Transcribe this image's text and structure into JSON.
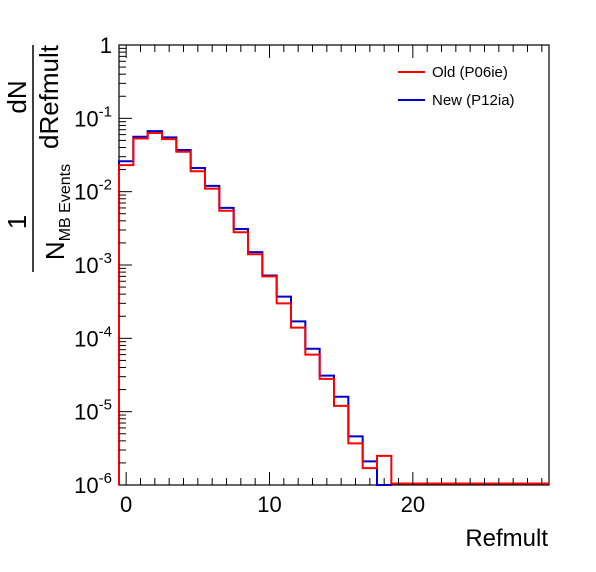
{
  "chart_data": {
    "type": "line",
    "xlabel": "Refmult",
    "ylabel": {
      "factor_numerator": "1",
      "factor_denominator_main": "N",
      "factor_denominator_sub": "MB Events",
      "deriv_numerator": "dN",
      "deriv_denominator": "dRefmult"
    },
    "x_ticks": [
      "0",
      "10",
      "20"
    ],
    "y_ticks": [
      {
        "base": "10",
        "exp": "-6"
      },
      {
        "base": "10",
        "exp": "-5"
      },
      {
        "base": "10",
        "exp": "-4"
      },
      {
        "base": "10",
        "exp": "-3"
      },
      {
        "base": "10",
        "exp": "-2"
      },
      {
        "base": "10",
        "exp": "-1"
      },
      {
        "base": "1",
        "exp": ""
      }
    ],
    "xlim": [
      -0.5,
      29.5
    ],
    "ylim": [
      1e-06,
      1
    ],
    "yscale": "log",
    "grid": false,
    "legend_position": "top-right",
    "bins": [
      0,
      1,
      2,
      3,
      4,
      5,
      6,
      7,
      8,
      9,
      10,
      11,
      12,
      13,
      14,
      15,
      16,
      17,
      18
    ],
    "series": [
      {
        "name": "Old (P06ie)",
        "color": "#ff0000",
        "values": [
          0.023,
          0.053,
          0.063,
          0.052,
          0.035,
          0.019,
          0.011,
          0.0055,
          0.0028,
          0.0014,
          0.0007,
          0.0003,
          0.00014,
          6e-05,
          2.8e-05,
          1.2e-05,
          3.7e-06,
          1.7e-06,
          2.5e-06
        ]
      },
      {
        "name": "New (P12ia)",
        "color": "#0000cc",
        "values": [
          0.026,
          0.056,
          0.067,
          0.055,
          0.037,
          0.021,
          0.012,
          0.006,
          0.0031,
          0.0015,
          0.00072,
          0.00037,
          0.00017,
          7.2e-05,
          3.1e-05,
          1.6e-05,
          4.6e-06,
          2.1e-06,
          1e-06
        ]
      }
    ]
  }
}
